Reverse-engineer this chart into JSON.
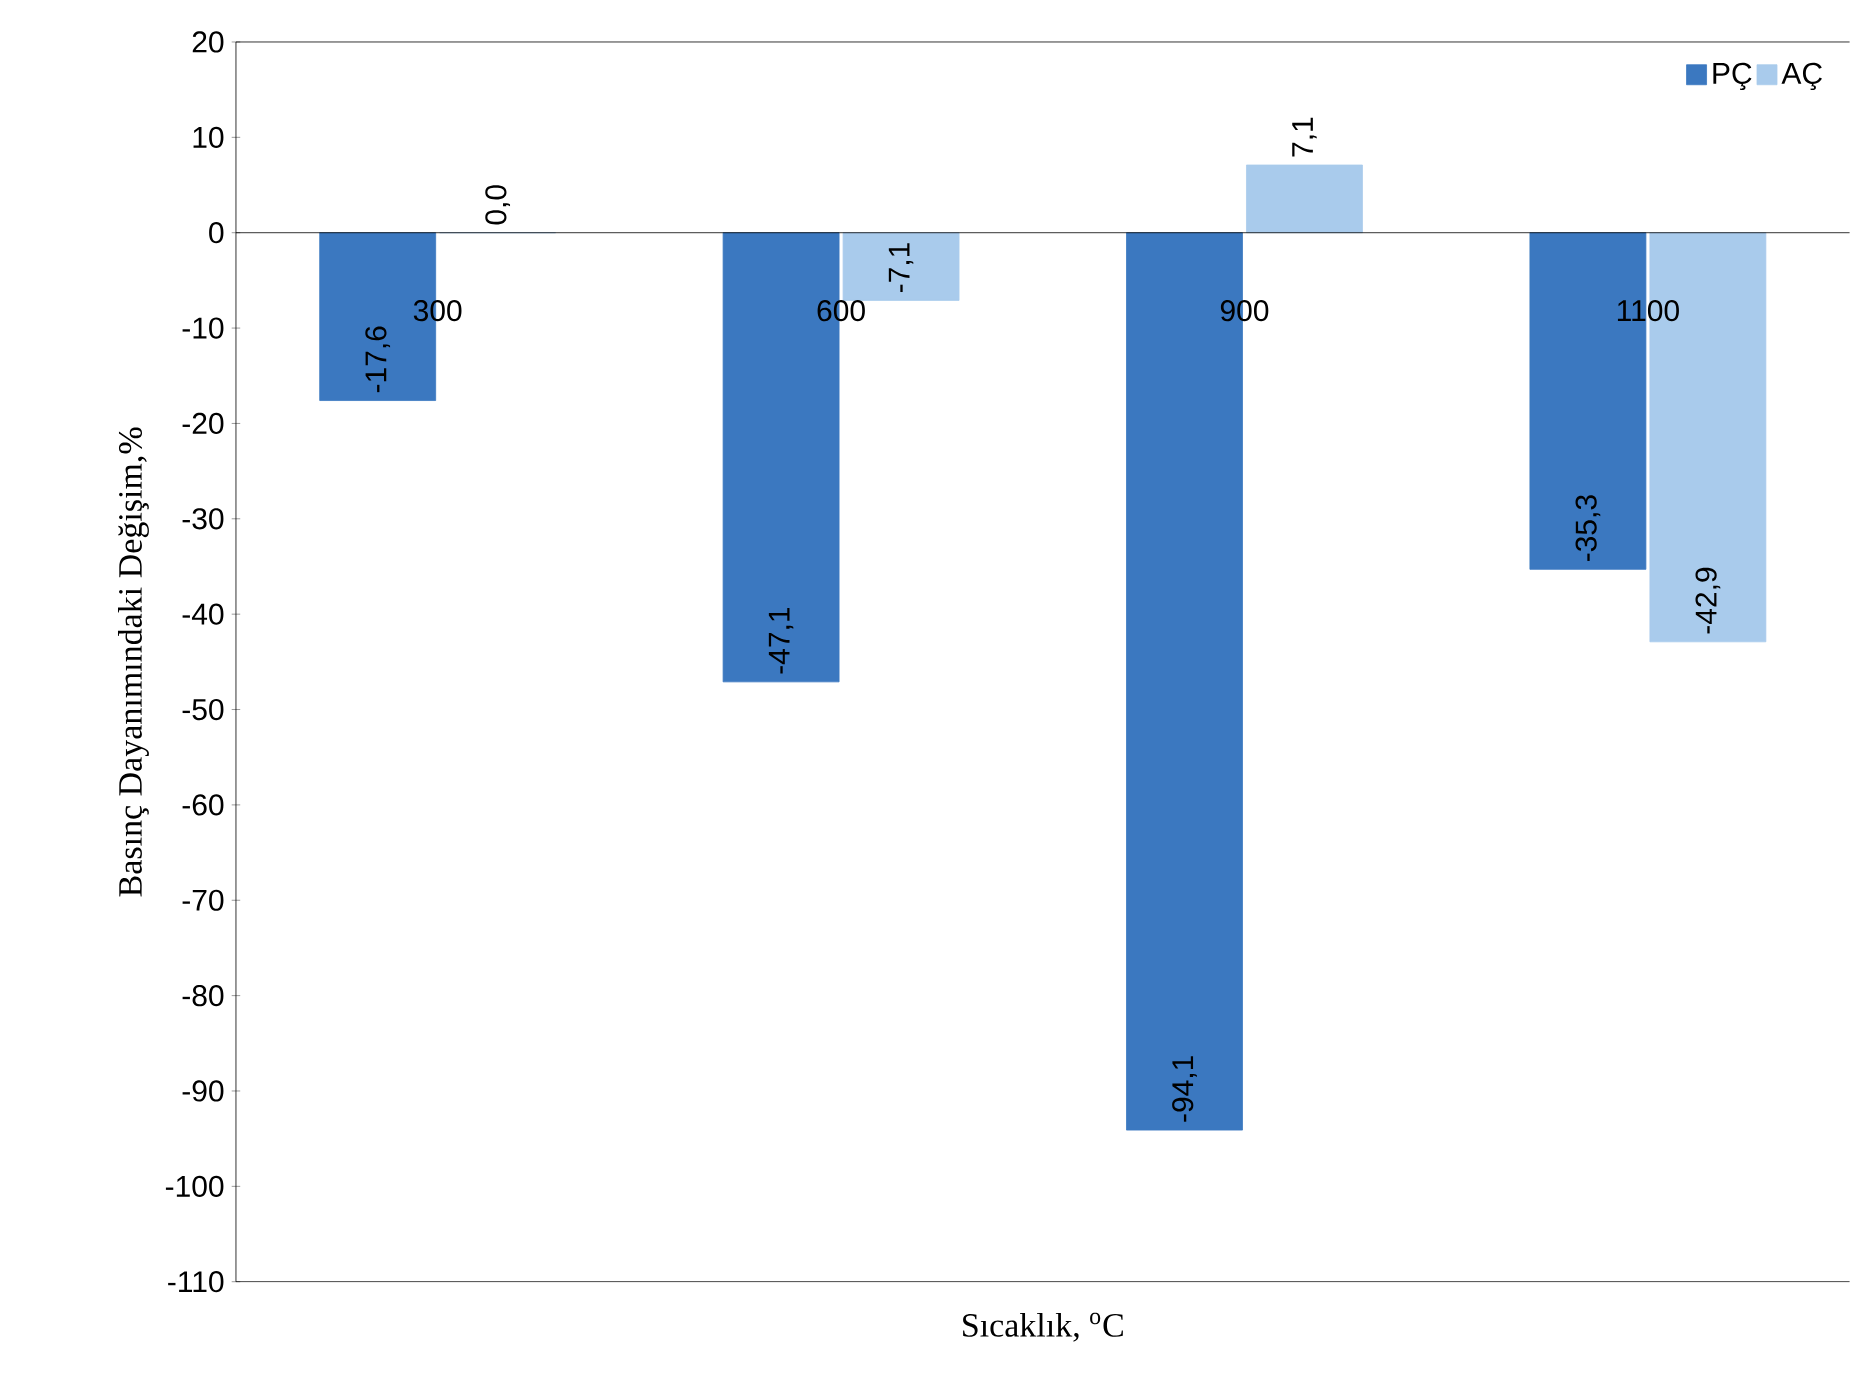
{
  "chart_data": {
    "type": "bar",
    "xlabel": "Sıcaklık, $^{o}$C",
    "ylabel": "Basınç Dayanımındaki Değişim,%",
    "categories": [
      "300",
      "600",
      "900",
      "1100"
    ],
    "series": [
      {
        "name": "PÇ",
        "color": "#3b78c0",
        "values": [
          -17.6,
          -47.1,
          -94.1,
          -35.3
        ],
        "value_labels": [
          "-17,6",
          "-47,1",
          "-94,1",
          "-35,3"
        ]
      },
      {
        "name": "AÇ",
        "color": "#a9cbec",
        "values": [
          0.0,
          -7.1,
          7.1,
          -42.9
        ],
        "value_labels": [
          "0,0",
          "-7,1",
          "7,1",
          "-42,9"
        ]
      }
    ],
    "ylim": [
      -110,
      20
    ],
    "yticks": [
      -110,
      -100,
      -90,
      -80,
      -70,
      -60,
      -50,
      -40,
      -30,
      -20,
      -10,
      0,
      10,
      20
    ],
    "legend": "top right",
    "grid": false
  }
}
